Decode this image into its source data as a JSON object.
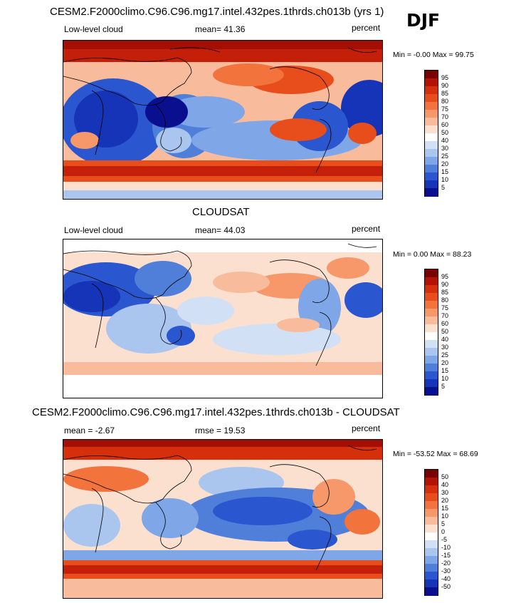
{
  "season": "DJF",
  "panels": [
    {
      "title": "CESM2.F2000climo.C96.C96.mg17.intel.432pes.1thrds.ch013b (yrs 1)",
      "left_label": "Low-level cloud",
      "stat_label": "mean=  41.36",
      "units": "percent",
      "minmax": "Min =  -0.00 Max =  99.75"
    },
    {
      "title": "CLOUDSAT",
      "left_label": "Low-level cloud",
      "stat_label": "mean=  44.03",
      "units": "percent",
      "minmax": "Min =   0.00 Max =  88.23"
    },
    {
      "title": "CESM2.F2000climo.C96.C96.mg17.intel.432pes.1thrds.ch013b - CLOUDSAT",
      "left_label": "mean =  -2.67",
      "stat_label": "rmse =  19.53",
      "units": "percent",
      "minmax": "Min = -53.52 Max =  68.69"
    }
  ],
  "colorbar_abs": {
    "labels": [
      "95",
      "90",
      "85",
      "80",
      "75",
      "70",
      "60",
      "50",
      "40",
      "30",
      "25",
      "20",
      "15",
      "10",
      "5"
    ],
    "colors": [
      "#7a0000",
      "#b31205",
      "#d62f0c",
      "#e84e1c",
      "#f2733c",
      "#f6986a",
      "#f8bc9c",
      "#fbe0cf",
      "#ffffff",
      "#d2e0f5",
      "#aac6ee",
      "#7fa6e6",
      "#4f7fd9",
      "#2a56cf",
      "#1634b8",
      "#0a0f8e"
    ]
  },
  "colorbar_diff": {
    "labels": [
      "50",
      "40",
      "30",
      "20",
      "15",
      "10",
      "5",
      "0",
      "-5",
      "-10",
      "-15",
      "-20",
      "-30",
      "-40",
      "-50"
    ],
    "colors": [
      "#7a0000",
      "#b31205",
      "#d62f0c",
      "#e84e1c",
      "#f2733c",
      "#f6986a",
      "#f8bc9c",
      "#fbe0cf",
      "#ffffff",
      "#d2e0f5",
      "#aac6ee",
      "#7fa6e6",
      "#4f7fd9",
      "#2a56cf",
      "#1634b8",
      "#0a0f8e"
    ]
  }
}
